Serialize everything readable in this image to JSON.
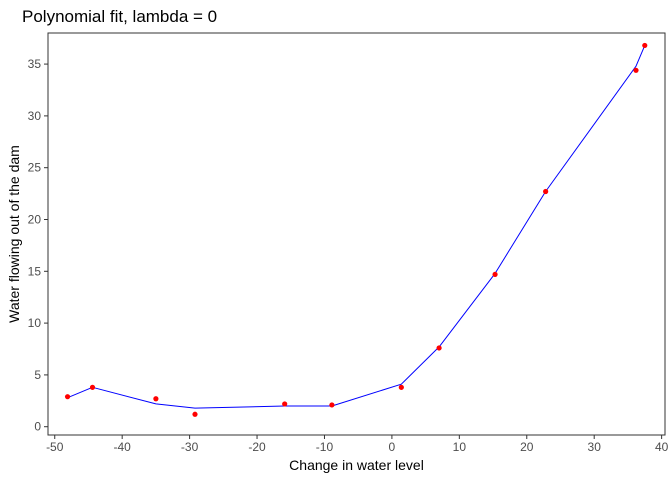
{
  "chart_data": {
    "type": "scatter",
    "title": "Polynomial fit, lambda = 0",
    "xlabel": "Change in water level",
    "ylabel": "Water flowing out of the dam",
    "xlim": [
      -51,
      40.5
    ],
    "ylim": [
      -0.8,
      38
    ],
    "x_ticks": [
      -50,
      -40,
      -30,
      -20,
      -10,
      0,
      10,
      20,
      30,
      40
    ],
    "y_ticks": [
      0,
      5,
      10,
      15,
      20,
      25,
      30,
      35
    ],
    "grid": false,
    "points": {
      "color": "#ff0000",
      "x": [
        -48.1,
        -44.4,
        -35.0,
        -29.2,
        -15.9,
        -8.9,
        1.4,
        7.0,
        15.3,
        22.8,
        36.2,
        37.5
      ],
      "y": [
        2.9,
        3.8,
        2.7,
        1.2,
        2.2,
        2.1,
        3.8,
        7.6,
        14.7,
        22.7,
        34.4,
        36.8
      ]
    },
    "fit_line": {
      "color": "#0000ff",
      "x": [
        -48.1,
        -44.4,
        -35.0,
        -29.2,
        -15.9,
        -8.9,
        1.4,
        7.0,
        15.3,
        22.8,
        36.2,
        37.5
      ],
      "y": [
        2.8,
        3.8,
        2.2,
        1.8,
        2.0,
        2.0,
        4.1,
        7.7,
        14.8,
        22.7,
        34.8,
        36.8
      ]
    }
  }
}
